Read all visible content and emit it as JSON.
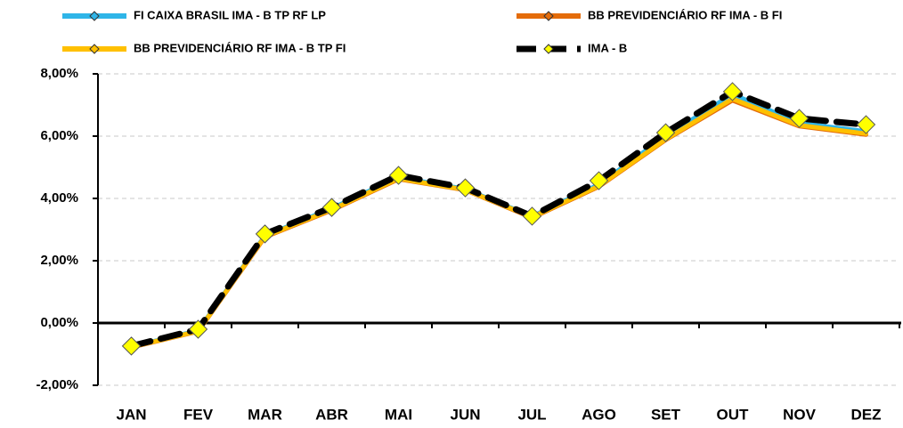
{
  "chart_data": {
    "type": "line",
    "categories": [
      "JAN",
      "FEV",
      "MAR",
      "ABR",
      "MAI",
      "JUN",
      "JUL",
      "AGO",
      "SET",
      "OUT",
      "NOV",
      "DEZ"
    ],
    "series": [
      {
        "name": "FI CAIXA BRASIL IMA - B TP RF LP",
        "color": "#2fb5e8",
        "values": [
          -0.76,
          -0.24,
          2.8,
          3.68,
          4.68,
          4.3,
          3.42,
          4.45,
          6.0,
          7.35,
          6.42,
          6.15
        ]
      },
      {
        "name": "BB PREVIDENCIÁRIO RF IMA - B FI",
        "color": "#e46c0a",
        "values": [
          -0.78,
          -0.27,
          2.76,
          3.62,
          4.62,
          4.27,
          3.38,
          4.38,
          5.88,
          7.15,
          6.32,
          6.05
        ]
      },
      {
        "name": "BB PREVIDENCIÁRIO RF IMA - B TP FI",
        "color": "#ffc000",
        "values": [
          -0.77,
          -0.26,
          2.78,
          3.64,
          4.64,
          4.28,
          3.4,
          4.4,
          5.9,
          7.2,
          6.35,
          6.08
        ]
      },
      {
        "name": "IMA - B",
        "color": "#000000",
        "marker_color": "#ffff00",
        "line_style": "dashed",
        "values": [
          -0.74,
          -0.2,
          2.86,
          3.71,
          4.74,
          4.34,
          3.43,
          4.57,
          6.11,
          7.43,
          6.57,
          6.37
        ]
      }
    ],
    "ylim": [
      -2,
      8
    ],
    "yticks": [
      {
        "value": -2,
        "label": "-2,00%"
      },
      {
        "value": 0,
        "label": "0,00%"
      },
      {
        "value": 2,
        "label": "2,00%"
      },
      {
        "value": 4,
        "label": "4,00%"
      },
      {
        "value": 6,
        "label": "6,00%"
      },
      {
        "value": 8,
        "label": "8,00%"
      }
    ],
    "grid": true
  }
}
